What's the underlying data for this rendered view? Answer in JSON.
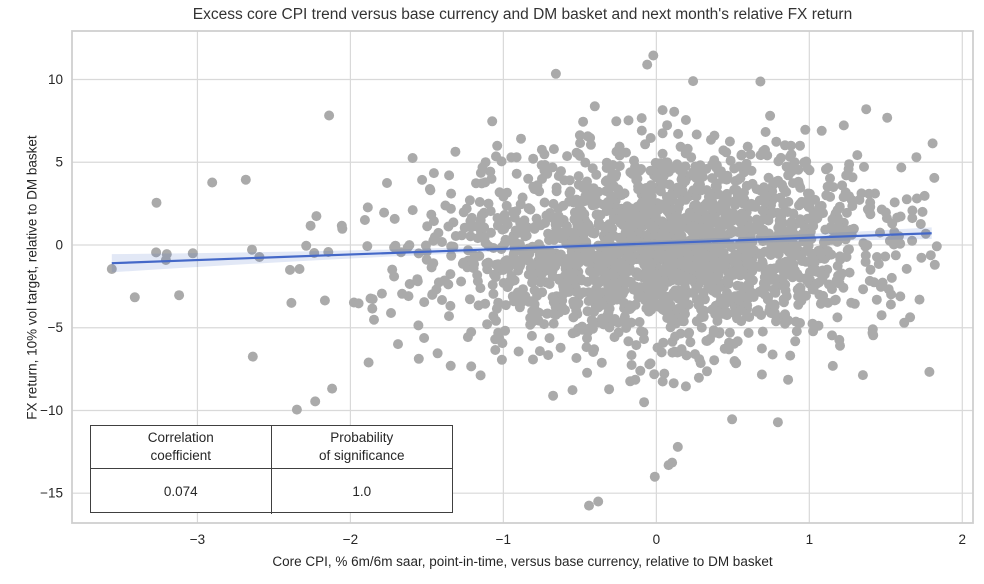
{
  "figure": {
    "title": "Excess core CPI trend versus base currency and DM basket and next month's relative FX return",
    "xlabel": "Core CPI, % 6m/6m saar, point-in-time, versus base currency, relative to DM basket",
    "ylabel": "FX return, 10% vol target, relative to DM basket"
  },
  "stats_table": {
    "col1_header_line1": "Correlation",
    "col1_header_line2": "coefficient",
    "col2_header_line1": "Probability",
    "col2_header_line2": "of significance",
    "col1_value": "0.074",
    "col2_value": "1.0"
  },
  "chart_data": {
    "type": "scatter",
    "title": "Excess core CPI trend versus base currency and DM basket and next month's relative FX return",
    "xlabel": "Core CPI, % 6m/6m saar, point-in-time, versus base currency, relative to DM basket",
    "ylabel": "FX return, 10% vol target, relative to DM basket",
    "xlim": [
      -3.82,
      2.07
    ],
    "ylim": [
      -16.8,
      12.93
    ],
    "grid": true,
    "legend": "none",
    "xticks": {
      "values": [
        -3,
        -2,
        -1,
        0,
        1,
        2
      ],
      "labels": [
        "−3",
        "−2",
        "−1",
        "0",
        "1",
        "2"
      ]
    },
    "yticks": {
      "values": [
        10,
        5,
        0,
        -5,
        -10,
        -15
      ],
      "labels": [
        "10",
        "5",
        "0",
        "−5",
        "−10",
        "−15"
      ]
    },
    "colors": {
      "marker": "#aaaaaa",
      "marker_opacity": 0.35,
      "regression_line": "#4468c8",
      "confidence_band": "#4a6fc4",
      "confidence_band_opacity": 0.16,
      "gridline": "#d9d9d9",
      "spine": "#cfcfcf",
      "background": "#ffffff"
    },
    "marker_radius_px": 5,
    "regression_line": {
      "x0": -3.56,
      "y0": -1.1,
      "x1": 1.8,
      "y1": 0.71
    },
    "confidence_band_half_width": {
      "t": [
        0,
        0.5,
        1
      ],
      "values": [
        0.55,
        0.15,
        0.35
      ]
    },
    "correlation_coefficient": 0.074,
    "probability_of_significance": 1.0,
    "point_cloud": {
      "n": 2200,
      "seed": 20240607,
      "x_dist": {
        "core": {
          "mean": 0.1,
          "std": 0.68,
          "weight": 0.96
        },
        "tail": {
          "mean": -1.3,
          "std": 0.85,
          "weight": 0.04
        },
        "min": -3.58,
        "max": 1.84
      },
      "y_dist": {
        "core": {
          "mean": -0.25,
          "std": 2.85,
          "weight": 0.93
        },
        "tail": {
          "mean": -0.8,
          "std": 5.3,
          "weight": 0.07
        },
        "min": -15.8,
        "max": 11.5
      },
      "slope_xy": 0.34
    },
    "notable_points": [
      [
        -0.02,
        11.45
      ],
      [
        -0.06,
        10.9
      ],
      [
        0.24,
        9.9
      ],
      [
        -0.44,
        -15.75
      ],
      [
        -0.38,
        -15.5
      ],
      [
        -0.01,
        -14.0
      ],
      [
        0.08,
        -13.3
      ],
      [
        0.14,
        -12.2
      ],
      [
        -2.35,
        -9.95
      ],
      [
        -2.23,
        -9.45
      ],
      [
        -2.12,
        -8.68
      ],
      [
        -3.56,
        -1.45
      ],
      [
        -3.27,
        -0.45
      ],
      [
        -3.2,
        -0.55
      ],
      [
        -3.03,
        -0.5
      ],
      [
        1.74,
        2.0
      ],
      [
        1.82,
        -1.2
      ],
      [
        1.72,
        -3.3
      ],
      [
        1.62,
        -4.7
      ]
    ]
  }
}
